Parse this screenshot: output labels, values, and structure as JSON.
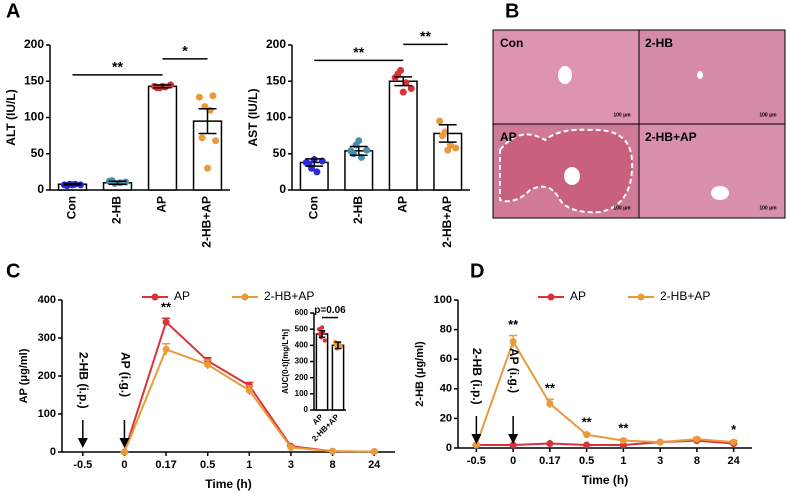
{
  "panel_labels": [
    "A",
    "B",
    "C",
    "D"
  ],
  "histology": {
    "labels": [
      "Con",
      "2-HB",
      "AP",
      "2-HB+AP"
    ],
    "scale_bar": "100 μm"
  },
  "chart_data": [
    {
      "type": "bar",
      "ylabel": "ALT (IU/L)",
      "categories": [
        "Con",
        "2-HB",
        "AP",
        "2-HB+AP"
      ],
      "values": [
        8,
        10,
        143,
        95
      ],
      "errors": [
        1,
        2,
        2,
        17
      ],
      "points": [
        [
          7,
          8,
          8,
          7,
          6,
          7
        ],
        [
          12,
          9,
          10,
          11,
          13
        ],
        [
          143,
          141,
          142,
          145,
          141,
          143
        ],
        [
          128,
          115,
          110,
          68,
          72,
          30,
          130
        ]
      ],
      "colors": [
        "#2b2bd9",
        "#4a8fa8",
        "#d9333a",
        "#e89a3c"
      ],
      "ylim": [
        0,
        200
      ],
      "yticks": [
        0,
        50,
        100,
        150,
        200
      ],
      "brackets": [
        {
          "label": "**",
          "from": "Con",
          "to": "AP"
        },
        {
          "label": "*",
          "from": "AP",
          "to": "2-HB+AP"
        }
      ]
    },
    {
      "type": "bar",
      "ylabel": "AST (IU/L)",
      "categories": [
        "Con",
        "2-HB",
        "AP",
        "2-HB+AP"
      ],
      "values": [
        38,
        54,
        150,
        78
      ],
      "errors": [
        5,
        6,
        6,
        12
      ],
      "points": [
        [
          38,
          30,
          25,
          40,
          36,
          42
        ],
        [
          54,
          62,
          45,
          55,
          50,
          68
        ],
        [
          155,
          165,
          148,
          140,
          160,
          135
        ],
        [
          95,
          80,
          62,
          58,
          75,
          55
        ]
      ],
      "colors": [
        "#2b2bd9",
        "#4a8fa8",
        "#d9333a",
        "#e89a3c"
      ],
      "ylim": [
        0,
        200
      ],
      "yticks": [
        0,
        50,
        100,
        150,
        200
      ],
      "brackets": [
        {
          "label": "**",
          "from": "Con",
          "to": "AP"
        },
        {
          "label": "**",
          "from": "AP",
          "to": "2-HB+AP"
        }
      ]
    },
    {
      "type": "line",
      "ylabel": "AP (μg/ml)",
      "xlabel": "Time (h)",
      "categories": [
        "-0.5",
        "0",
        "0.17",
        "0.5",
        "1",
        "3",
        "8",
        "24"
      ],
      "series": [
        {
          "name": "AP",
          "color": "#d9333a",
          "values": [
            null,
            0,
            342,
            240,
            175,
            15,
            2,
            1
          ],
          "errors": [
            null,
            0,
            10,
            8,
            8,
            2,
            1,
            1
          ]
        },
        {
          "name": "2-HB+AP",
          "color": "#e89a3c",
          "values": [
            null,
            0,
            270,
            230,
            162,
            12,
            2,
            1
          ],
          "errors": [
            null,
            0,
            15,
            12,
            12,
            2,
            1,
            1
          ]
        }
      ],
      "ylim": [
        0,
        400
      ],
      "yticks": [
        0,
        100,
        200,
        300,
        400
      ],
      "arrows": [
        {
          "text": "2-HB (i.p.)",
          "at": "-0.5"
        },
        {
          "text": "AP (i.g.)",
          "at": "0"
        }
      ],
      "stars": [
        {
          "text": "**",
          "at": "0.17"
        }
      ]
    },
    {
      "type": "bar",
      "ylabel": "AUC(0-t)[mg/L*h]",
      "categories": [
        "AP",
        "2-HB+AP"
      ],
      "values": [
        470,
        400
      ],
      "errors": [
        20,
        20
      ],
      "points": [
        [
          500,
          450,
          480,
          430,
          470,
          510
        ],
        [
          420,
          380,
          410,
          390,
          400
        ]
      ],
      "colors": [
        "#d9333a",
        "#e89a3c"
      ],
      "ylim": [
        0,
        600
      ],
      "yticks": [
        0,
        100,
        200,
        300,
        400,
        500,
        600
      ],
      "brackets": [
        {
          "label": "p=0.06",
          "from": "AP",
          "to": "2-HB+AP"
        }
      ]
    },
    {
      "type": "line",
      "ylabel": "2-HB (μg/ml)",
      "xlabel": "Time (h)",
      "categories": [
        "-0.5",
        "0",
        "0.17",
        "0.5",
        "1",
        "3",
        "8",
        "24"
      ],
      "series": [
        {
          "name": "AP",
          "color": "#d9333a",
          "values": [
            2,
            2,
            3,
            2,
            2,
            4,
            5,
            3
          ],
          "errors": [
            0,
            0,
            0,
            0,
            0,
            0,
            0,
            0
          ]
        },
        {
          "name": "2-HB+AP",
          "color": "#e89a3c",
          "values": [
            2,
            72,
            30,
            9,
            5,
            4,
            6,
            4
          ],
          "errors": [
            0,
            4,
            3,
            1,
            1,
            0,
            1,
            1
          ]
        }
      ],
      "ylim": [
        0,
        100
      ],
      "yticks": [
        0,
        20,
        40,
        60,
        80,
        100
      ],
      "arrows": [
        {
          "text": "2-HB (i.p.)",
          "at": "-0.5"
        },
        {
          "text": "AP (i.g.)",
          "at": "0"
        }
      ],
      "stars": [
        {
          "text": "**",
          "at": "0"
        },
        {
          "text": "**",
          "at": "0.17"
        },
        {
          "text": "**",
          "at": "0.5"
        },
        {
          "text": "**",
          "at": "1"
        },
        {
          "text": "*",
          "at": "24"
        }
      ]
    }
  ]
}
